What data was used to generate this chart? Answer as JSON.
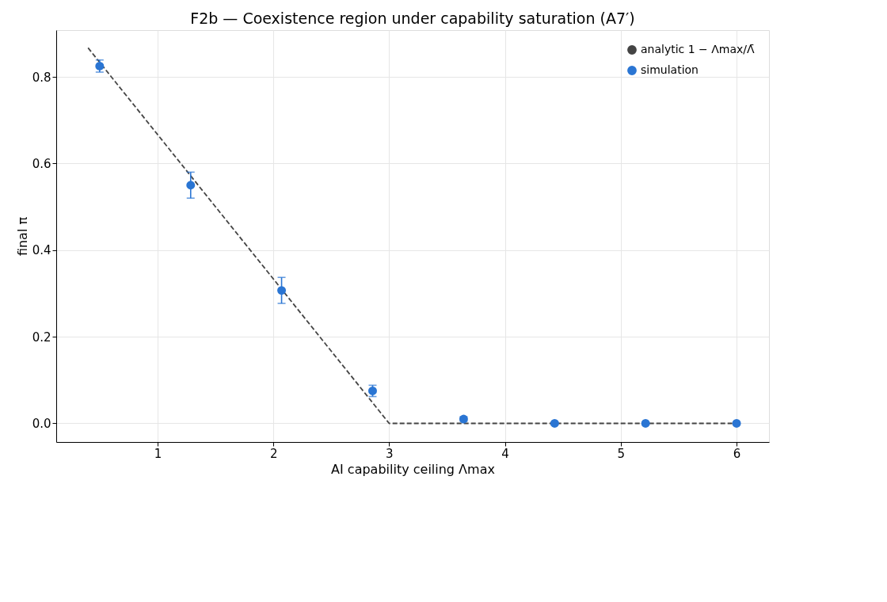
{
  "chart_data": {
    "type": "scatter",
    "title": "F2b — Coexistence region under capability saturation (A7′)",
    "xlabel": "AI capability ceiling Λmax",
    "ylabel": "final π",
    "x": [
      0.5,
      1.286,
      2.071,
      2.857,
      3.643,
      4.429,
      5.214,
      6.0
    ],
    "series": [
      {
        "name": "analytic 1 − Λmax/Λ̄",
        "type": "line",
        "color": "#444444",
        "line_style": "dashed",
        "marker": "none",
        "x": [
          0.4,
          3.0,
          6.0
        ],
        "values": [
          0.867,
          0.0,
          0.0
        ]
      },
      {
        "name": "simulation",
        "color": "#2a75d3",
        "marker": "circle",
        "values": [
          0.825,
          0.55,
          0.307,
          0.075,
          0.01,
          0.0,
          0.0,
          0.0
        ],
        "errors": [
          0.014,
          0.03,
          0.03,
          0.013,
          0.005,
          0.002,
          0.002,
          0.002
        ]
      }
    ],
    "xlim": [
      0.125,
      6.28
    ],
    "ylim": [
      -0.043,
      0.908
    ],
    "xticks": [
      {
        "value": 1,
        "label": "1"
      },
      {
        "value": 2,
        "label": "2"
      },
      {
        "value": 3,
        "label": "3"
      },
      {
        "value": 4,
        "label": "4"
      },
      {
        "value": 5,
        "label": "5"
      },
      {
        "value": 6,
        "label": "6"
      }
    ],
    "yticks": [
      {
        "value": 0,
        "label": "0.0"
      },
      {
        "value": 0.2,
        "label": "0.2"
      },
      {
        "value": 0.4,
        "label": "0.4"
      },
      {
        "value": 0.6,
        "label": "0.6"
      },
      {
        "value": 0.8,
        "label": "0.8"
      }
    ],
    "grid": true,
    "legend": "top right"
  }
}
